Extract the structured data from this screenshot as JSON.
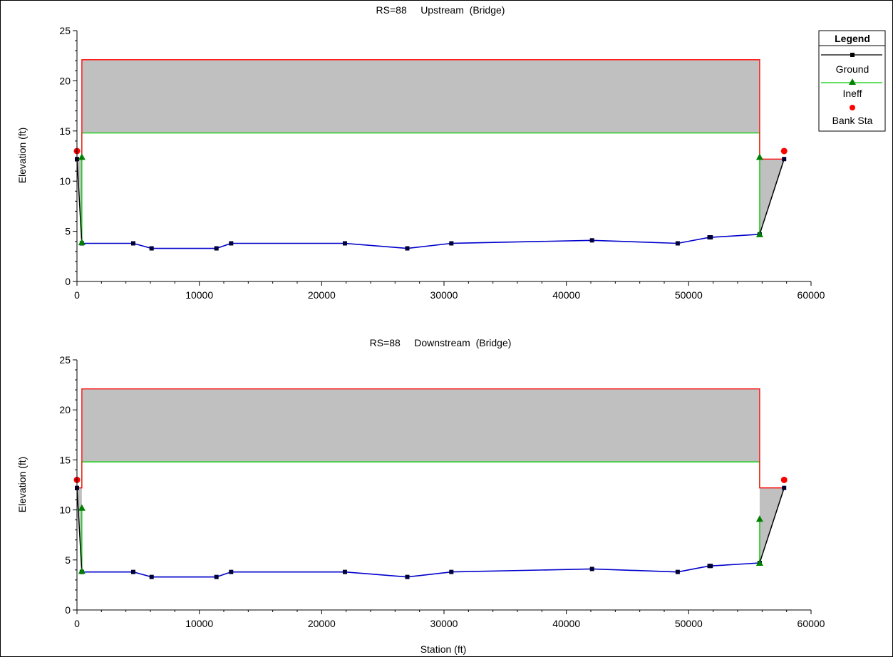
{
  "charts": [
    {
      "title": "RS=88     Upstream  (Bridge)",
      "ylabel": "Elevation (ft)",
      "xlabel": "",
      "xlim": [
        0,
        60000
      ],
      "ylim": [
        0,
        25
      ],
      "xticks": [
        "0",
        "10000",
        "20000",
        "30000",
        "40000",
        "50000",
        "60000"
      ],
      "yticks": [
        "0",
        "5",
        "10",
        "15",
        "20",
        "25"
      ]
    },
    {
      "title": "RS=88     Downstream  (Bridge)",
      "ylabel": "Elevation (ft)",
      "xlabel": "Station (ft)",
      "xlim": [
        0,
        60000
      ],
      "ylim": [
        0,
        25
      ],
      "xticks": [
        "0",
        "10000",
        "20000",
        "30000",
        "40000",
        "50000",
        "60000"
      ],
      "yticks": [
        "0",
        "5",
        "10",
        "15",
        "20",
        "25"
      ]
    }
  ],
  "legend": {
    "title": "Legend",
    "items": [
      {
        "label": "Ground",
        "color": "#000000",
        "marker": "square"
      },
      {
        "label": "Ineff",
        "color": "#00cc00",
        "marker": "triangle"
      },
      {
        "label": "Bank Sta",
        "color": "#ff0000",
        "marker": "circle"
      }
    ]
  },
  "chart_data": [
    {
      "type": "line",
      "title": "RS=88     Upstream  (Bridge)",
      "xlabel": "",
      "ylabel": "Elevation (ft)",
      "xlim": [
        0,
        60000
      ],
      "ylim": [
        0,
        25
      ],
      "ground": [
        [
          0,
          12.2
        ],
        [
          400,
          3.8
        ],
        [
          4600,
          3.8
        ],
        [
          6100,
          3.3
        ],
        [
          11400,
          3.3
        ],
        [
          12600,
          3.8
        ],
        [
          21900,
          3.8
        ],
        [
          27000,
          3.3
        ],
        [
          30600,
          3.8
        ],
        [
          42100,
          4.1
        ],
        [
          49100,
          3.8
        ],
        [
          51700,
          4.4
        ],
        [
          51800,
          4.4
        ],
        [
          55800,
          4.7
        ],
        [
          57800,
          12.2
        ]
      ],
      "bank_sta": [
        [
          0,
          13.0
        ],
        [
          57800,
          13.0
        ]
      ],
      "ineff": [
        [
          400,
          12.4
        ],
        [
          400,
          3.9
        ],
        [
          55800,
          12.4
        ],
        [
          55800,
          4.7
        ]
      ],
      "deck_high": 22.1,
      "deck_low": 14.8,
      "deck_left": 400,
      "deck_right": 55800,
      "chord_low_ends": 12.2
    },
    {
      "type": "line",
      "title": "RS=88     Downstream  (Bridge)",
      "xlabel": "Station (ft)",
      "ylabel": "Elevation (ft)",
      "xlim": [
        0,
        60000
      ],
      "ylim": [
        0,
        25
      ],
      "ground": [
        [
          0,
          12.2
        ],
        [
          400,
          3.8
        ],
        [
          4600,
          3.8
        ],
        [
          6100,
          3.3
        ],
        [
          11400,
          3.3
        ],
        [
          12600,
          3.8
        ],
        [
          21900,
          3.8
        ],
        [
          27000,
          3.3
        ],
        [
          30600,
          3.8
        ],
        [
          42100,
          4.1
        ],
        [
          49100,
          3.8
        ],
        [
          51700,
          4.4
        ],
        [
          51800,
          4.4
        ],
        [
          55800,
          4.7
        ],
        [
          57800,
          12.2
        ]
      ],
      "bank_sta": [
        [
          0,
          13.0
        ],
        [
          57800,
          13.0
        ]
      ],
      "ineff": [
        [
          400,
          10.2
        ],
        [
          400,
          3.9
        ],
        [
          55800,
          9.1
        ],
        [
          55800,
          4.7
        ]
      ],
      "deck_high": 22.1,
      "deck_low": 14.8,
      "deck_left": 400,
      "deck_right": 55800,
      "chord_low_ends": 12.2
    }
  ]
}
